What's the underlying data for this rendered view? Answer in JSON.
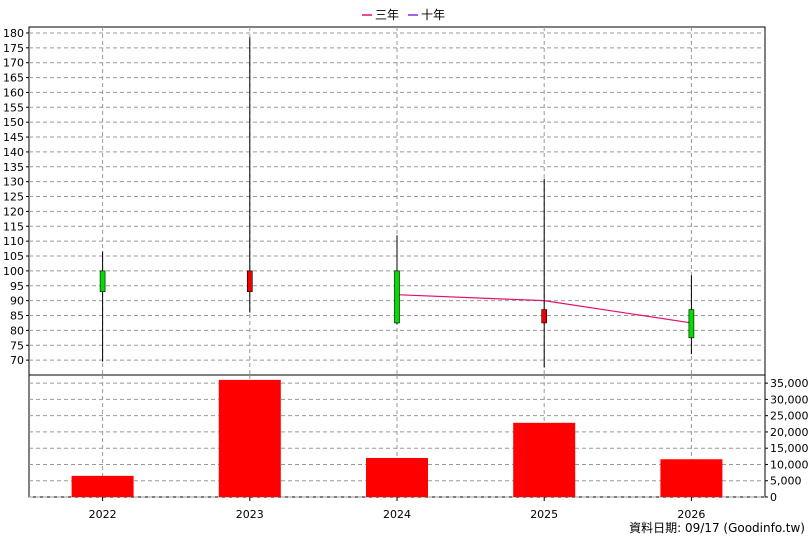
{
  "legend": [
    {
      "label": "三年",
      "color": "#e0106e"
    },
    {
      "label": "十年",
      "color": "#8a2be2"
    }
  ],
  "footer": "資料日期: 09/17  (Goodinfo.tw)",
  "chart_data": [
    {
      "type": "candlestick",
      "categories": [
        "2022",
        "2023",
        "2024",
        "2025",
        "2026"
      ],
      "ylim": [
        65,
        182
      ],
      "yticks": [
        70,
        75,
        80,
        85,
        90,
        95,
        100,
        105,
        110,
        115,
        120,
        125,
        130,
        135,
        140,
        145,
        150,
        155,
        160,
        165,
        170,
        175,
        180
      ],
      "grid": true,
      "candles": [
        {
          "x": "2022",
          "open": 93,
          "close": 100,
          "high": 106.5,
          "low": 69.5,
          "color": "#00dd00"
        },
        {
          "x": "2023",
          "open": 100,
          "close": 93,
          "high": 178.5,
          "low": 86,
          "color": "#ee0000"
        },
        {
          "x": "2024",
          "open": 82.5,
          "close": 100,
          "high": 112,
          "low": 82,
          "color": "#00dd00"
        },
        {
          "x": "2025",
          "open": 87,
          "close": 82.5,
          "high": 131,
          "low": 67.5,
          "color": "#ee0000"
        },
        {
          "x": "2026",
          "open": 77.5,
          "close": 87,
          "high": 98.5,
          "low": 72,
          "color": "#00dd00"
        }
      ],
      "series": [
        {
          "name": "三年",
          "color": "#e0106e",
          "x": [
            "2024",
            "2025",
            "2026"
          ],
          "values": [
            92,
            90,
            82.5
          ]
        }
      ]
    },
    {
      "type": "bar",
      "categories": [
        "2022",
        "2023",
        "2024",
        "2025",
        "2026"
      ],
      "values": [
        6500,
        36000,
        12000,
        22800,
        11600
      ],
      "color": "#ff0000",
      "ylim": [
        0,
        37500
      ],
      "yticks": [
        0,
        5000,
        10000,
        15000,
        20000,
        25000,
        30000,
        35000
      ],
      "ytick_labels": [
        "0",
        "5,000",
        "10,000",
        "15,000",
        "20,000",
        "25,000",
        "30,000",
        "35,000"
      ],
      "grid": true
    }
  ]
}
